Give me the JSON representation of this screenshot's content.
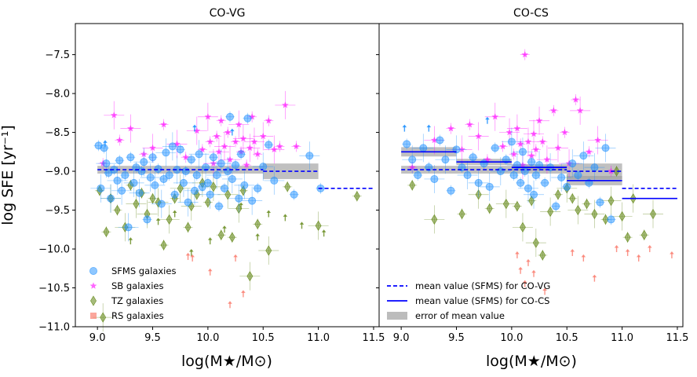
{
  "chart_data": [
    {
      "type": "scatter",
      "title": "CO-VG",
      "xlabel": "log(M★/M⊙)",
      "ylabel": "log SFE [yr⁻¹]",
      "xlim": [
        8.8,
        11.55
      ],
      "ylim": [
        -11.0,
        -7.1
      ],
      "xticks": [
        9.0,
        9.5,
        10.0,
        10.5,
        11.0,
        11.5
      ],
      "xtick_labels": [
        "9.0",
        "9.5",
        "10.0",
        "10.5",
        "11.0",
        "11.5"
      ],
      "yticks": [
        -7.5,
        -8.0,
        -8.5,
        -9.0,
        -9.5,
        -10.0,
        -10.5,
        -11.0
      ],
      "ytick_labels": [
        "−7.5",
        "−8.0",
        "−8.5",
        "−9.0",
        "−9.5",
        "−10.0",
        "−10.5",
        "−11.0"
      ],
      "legend": {
        "position": "lower-left",
        "entries": [
          {
            "label": "SFMS galaxies",
            "marker": "circle",
            "color": "#1e90ff"
          },
          {
            "label": "SB galaxies",
            "marker": "star",
            "color": "#ff00ff"
          },
          {
            "label": "TZ galaxies",
            "marker": "thin_diamond",
            "color": "#6b8e23"
          },
          {
            "label": "RS galaxies",
            "marker": "square",
            "color": "#fa8072"
          }
        ]
      },
      "series": [
        {
          "name": "SFMS galaxies",
          "marker": "circle",
          "color": "#1e90ff",
          "x": [
            9.01,
            9.03,
            9.06,
            9.08,
            9.1,
            9.12,
            9.15,
            9.18,
            9.2,
            9.22,
            9.25,
            9.28,
            9.3,
            9.33,
            9.35,
            9.38,
            9.4,
            9.42,
            9.45,
            9.48,
            9.5,
            9.52,
            9.55,
            9.58,
            9.6,
            9.62,
            9.65,
            9.68,
            9.7,
            9.72,
            9.75,
            9.78,
            9.8,
            9.82,
            9.85,
            9.88,
            9.9,
            9.92,
            9.95,
            9.98,
            10.0,
            10.02,
            10.05,
            10.08,
            10.1,
            10.12,
            10.15,
            10.18,
            10.2,
            10.22,
            10.25,
            10.28,
            10.3,
            10.33,
            10.36,
            10.4,
            10.45,
            10.5,
            10.55,
            10.6,
            10.78,
            10.92,
            11.02
          ],
          "y": [
            -8.67,
            -9.22,
            -8.7,
            -8.9,
            -9.02,
            -9.35,
            -8.98,
            -9.12,
            -8.86,
            -9.25,
            -9.05,
            -9.72,
            -8.82,
            -9.15,
            -8.95,
            -9.28,
            -9.0,
            -8.88,
            -9.62,
            -9.08,
            -8.82,
            -9.18,
            -8.97,
            -9.42,
            -9.1,
            -8.76,
            -9.05,
            -8.68,
            -9.3,
            -8.98,
            -8.72,
            -9.15,
            -9.0,
            -9.4,
            -8.85,
            -9.25,
            -9.05,
            -8.78,
            -9.2,
            -8.95,
            -9.15,
            -9.3,
            -8.82,
            -9.05,
            -9.45,
            -8.9,
            -9.22,
            -9.0,
            -8.3,
            -9.1,
            -8.92,
            -9.35,
            -8.78,
            -9.18,
            -8.32,
            -9.38,
            -9.22,
            -8.94,
            -8.66,
            -9.12,
            -9.3,
            -8.8,
            -9.22
          ],
          "upper_limits": {
            "x": [
              9.07,
              9.88,
              10.22
            ],
            "y": [
              -8.65,
              -8.45,
              -8.5
            ]
          }
        },
        {
          "name": "SB galaxies",
          "marker": "star",
          "color": "#ff00ff",
          "x": [
            9.05,
            9.15,
            9.2,
            9.3,
            9.42,
            9.5,
            9.6,
            9.72,
            9.8,
            9.9,
            9.95,
            10.0,
            10.02,
            10.05,
            10.08,
            10.1,
            10.12,
            10.15,
            10.18,
            10.2,
            10.25,
            10.28,
            10.3,
            10.32,
            10.35,
            10.38,
            10.4,
            10.42,
            10.45,
            10.5,
            10.55,
            10.6,
            10.65,
            10.7,
            10.8
          ],
          "y": [
            -8.9,
            -8.28,
            -8.6,
            -8.45,
            -8.78,
            -8.7,
            -8.4,
            -8.65,
            -8.82,
            -8.48,
            -8.72,
            -8.3,
            -8.62,
            -8.9,
            -8.55,
            -8.75,
            -8.35,
            -8.68,
            -8.5,
            -8.85,
            -8.62,
            -8.4,
            -8.75,
            -8.58,
            -8.92,
            -8.7,
            -8.3,
            -8.62,
            -8.78,
            -8.55,
            -8.35,
            -8.72,
            -8.68,
            -8.15,
            -8.68
          ]
        },
        {
          "name": "TZ galaxies",
          "marker": "thin_diamond",
          "color": "#6b8e23",
          "x": [
            9.02,
            9.05,
            9.08,
            9.12,
            9.18,
            9.25,
            9.3,
            9.35,
            9.4,
            9.45,
            9.5,
            9.55,
            9.6,
            9.65,
            9.7,
            9.75,
            9.82,
            9.85,
            9.9,
            9.95,
            10.0,
            10.05,
            10.12,
            10.18,
            10.22,
            10.28,
            10.32,
            10.38,
            10.45,
            10.55,
            10.72,
            11.0,
            11.35
          ],
          "y": [
            -9.25,
            -10.88,
            -9.78,
            -9.35,
            -9.5,
            -9.72,
            -9.18,
            -9.42,
            -9.28,
            -9.55,
            -9.35,
            -9.4,
            -9.95,
            -9.62,
            -9.35,
            -9.22,
            -9.72,
            -9.45,
            -9.3,
            -9.15,
            -9.4,
            -9.2,
            -9.82,
            -9.3,
            -9.85,
            -9.48,
            -9.25,
            -10.35,
            -9.68,
            -10.02,
            -9.2,
            -9.7,
            -9.32
          ],
          "upper_limits": {
            "x": [
              9.3,
              9.55,
              9.7,
              9.85,
              10.02,
              10.15,
              10.3,
              10.45,
              10.55,
              10.7,
              10.85,
              11.05
            ],
            "y": [
              -9.9,
              -9.65,
              -9.55,
              -10.05,
              -9.9,
              -9.75,
              -9.45,
              -9.85,
              -9.55,
              -9.6,
              -9.7,
              -9.8
            ]
          }
        },
        {
          "name": "RS galaxies",
          "marker": "square",
          "color": "#fa8072",
          "upper_limits": {
            "x": [
              9.82,
              9.86,
              10.02,
              10.2,
              10.25,
              10.32
            ],
            "y": [
              -10.1,
              -10.12,
              -10.3,
              -10.72,
              -10.12,
              -10.58
            ]
          }
        }
      ],
      "mean_lines": [
        {
          "name": "mean value (SFMS) for CO-VG",
          "style": "dashed",
          "color": "#0000ff",
          "bins": [
            {
              "x": [
                9.0,
                10.5
              ],
              "y": -8.98,
              "err": 0.05
            },
            {
              "x": [
                10.5,
                11.0
              ],
              "y": -9.0,
              "err": 0.1
            },
            {
              "x": [
                11.0,
                11.5
              ],
              "y": -9.22,
              "err": null
            }
          ]
        }
      ]
    },
    {
      "type": "scatter",
      "title": "CO-CS",
      "xlabel": "log(M★/M⊙)",
      "xlim": [
        8.8,
        11.55
      ],
      "ylim": [
        -11.0,
        -7.1
      ],
      "xticks": [
        9.0,
        9.5,
        10.0,
        10.5,
        11.0,
        11.5
      ],
      "xtick_labels": [
        "9.0",
        "9.5",
        "10.0",
        "10.5",
        "11.0",
        "11.5"
      ],
      "legend": {
        "position": "lower-left",
        "entries": [
          {
            "label": "mean value (SFMS) for CO-VG",
            "style": "dashed",
            "color": "#0000ff"
          },
          {
            "label": "mean value (SFMS) for CO-CS",
            "style": "solid",
            "color": "#0000ff"
          },
          {
            "label": "error of mean value",
            "style": "patch",
            "color": "#b0b0b0"
          }
        ]
      },
      "series": [
        {
          "name": "SFMS galaxies",
          "marker": "circle",
          "color": "#1e90ff",
          "x": [
            9.05,
            9.1,
            9.15,
            9.2,
            9.25,
            9.3,
            9.35,
            9.4,
            9.45,
            9.5,
            9.55,
            9.6,
            9.65,
            9.7,
            9.75,
            9.8,
            9.85,
            9.9,
            9.95,
            10.0,
            10.02,
            10.05,
            10.08,
            10.1,
            10.12,
            10.15,
            10.18,
            10.2,
            10.22,
            10.25,
            10.3,
            10.35,
            10.4,
            10.45,
            10.5,
            10.55,
            10.6,
            10.65,
            10.7,
            10.75,
            10.8,
            10.85,
            10.9
          ],
          "y": [
            -8.65,
            -8.85,
            -9.05,
            -8.7,
            -8.95,
            -9.1,
            -8.6,
            -8.85,
            -9.25,
            -8.72,
            -8.95,
            -9.05,
            -8.82,
            -9.15,
            -8.9,
            -9.2,
            -8.7,
            -9.0,
            -8.85,
            -8.62,
            -9.05,
            -8.92,
            -9.15,
            -8.75,
            -9.0,
            -9.22,
            -8.88,
            -9.3,
            -9.05,
            -8.92,
            -9.15,
            -8.95,
            -9.45,
            -9.08,
            -9.2,
            -8.9,
            -9.05,
            -8.8,
            -9.15,
            -8.95,
            -9.4,
            -8.7,
            -9.62
          ],
          "upper_limits": {
            "x": [
              9.03,
              9.25,
              9.78
            ],
            "y": [
              -8.45,
              -8.45,
              -8.35
            ]
          }
        },
        {
          "name": "SB galaxies",
          "marker": "star",
          "color": "#ff00ff",
          "x": [
            9.1,
            9.3,
            9.45,
            9.55,
            9.62,
            9.7,
            9.78,
            9.85,
            9.92,
            9.98,
            10.02,
            10.05,
            10.08,
            10.1,
            10.12,
            10.15,
            10.18,
            10.2,
            10.22,
            10.25,
            10.28,
            10.32,
            10.38,
            10.42,
            10.48,
            10.52,
            10.58,
            10.62,
            10.7,
            10.78,
            10.9
          ],
          "y": [
            -8.95,
            -8.6,
            -8.45,
            -8.72,
            -8.4,
            -8.55,
            -8.85,
            -8.3,
            -8.68,
            -8.5,
            -8.78,
            -8.45,
            -8.65,
            -8.92,
            -7.5,
            -8.62,
            -8.8,
            -8.52,
            -8.72,
            -8.35,
            -8.62,
            -8.85,
            -8.22,
            -8.7,
            -8.5,
            -8.9,
            -8.08,
            -8.22,
            -8.75,
            -8.6,
            -9.0
          ]
        },
        {
          "name": "TZ galaxies",
          "marker": "thin_diamond",
          "color": "#6b8e23",
          "x": [
            9.1,
            9.3,
            9.55,
            9.7,
            9.8,
            9.95,
            10.05,
            10.1,
            10.18,
            10.22,
            10.28,
            10.35,
            10.42,
            10.5,
            10.55,
            10.6,
            10.68,
            10.75,
            10.85,
            10.9,
            10.95,
            11.0,
            11.05,
            11.1,
            11.2,
            11.28
          ],
          "y": [
            -9.18,
            -9.62,
            -9.55,
            -9.3,
            -9.48,
            -9.42,
            -9.45,
            -9.72,
            -9.38,
            -9.92,
            -10.08,
            -9.52,
            -9.3,
            -9.22,
            -9.35,
            -9.5,
            -9.42,
            -9.55,
            -9.62,
            -9.38,
            -9.0,
            -9.58,
            -9.85,
            -9.35,
            -9.82,
            -9.55
          ]
        },
        {
          "name": "RS galaxies",
          "marker": "square",
          "color": "#fa8072",
          "upper_limits": {
            "x": [
              10.05,
              10.08,
              10.12,
              10.15,
              10.2,
              10.3,
              10.55,
              10.65,
              10.75,
              10.95,
              11.05,
              11.15,
              11.25,
              11.45
            ],
            "y": [
              -10.08,
              -10.28,
              -10.45,
              -10.18,
              -10.32,
              -10.55,
              -10.05,
              -10.12,
              -10.38,
              -10.0,
              -10.05,
              -10.12,
              -10.0,
              -10.08
            ]
          }
        }
      ],
      "mean_lines": [
        {
          "name": "mean value (SFMS) for CO-VG",
          "style": "dashed",
          "color": "#0000ff",
          "bins": [
            {
              "x": [
                9.0,
                10.5
              ],
              "y": -8.98,
              "err": 0.05
            },
            {
              "x": [
                10.5,
                11.0
              ],
              "y": -9.0,
              "err": 0.1
            },
            {
              "x": [
                11.0,
                11.5
              ],
              "y": -9.22,
              "err": null
            }
          ]
        },
        {
          "name": "mean value (SFMS) for CO-CS",
          "style": "solid",
          "color": "#0000ff",
          "bins": [
            {
              "x": [
                9.0,
                9.5
              ],
              "y": -8.75,
              "err": 0.06
            },
            {
              "x": [
                9.5,
                10.0
              ],
              "y": -8.88,
              "err": 0.04
            },
            {
              "x": [
                10.0,
                10.5
              ],
              "y": -8.95,
              "err": 0.04
            },
            {
              "x": [
                10.5,
                11.0
              ],
              "y": -9.12,
              "err": 0.06
            },
            {
              "x": [
                11.0,
                11.5
              ],
              "y": -9.35,
              "err": null
            }
          ]
        }
      ]
    }
  ]
}
